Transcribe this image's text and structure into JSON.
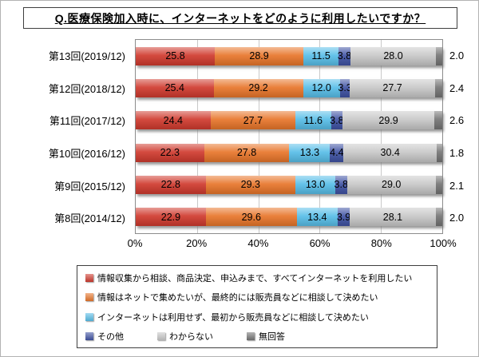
{
  "title": "Q.医療保険加入時に、インターネットをどのように利用したいですか？",
  "chart_data": {
    "type": "bar",
    "stacked": true,
    "orientation": "horizontal",
    "title": "Q.医療保険加入時に、インターネットをどのように利用したいですか？",
    "categories": [
      "第13回(2019/12)",
      "第12回(2018/12)",
      "第11回(2017/12)",
      "第10回(2016/12)",
      "第9回(2015/12)",
      "第8回(2014/12)"
    ],
    "series": [
      {
        "name": "情報収集から相談、商品決定、申込みまで、すべてインターネットを利用したい",
        "color": "#d03b2f",
        "values": [
          25.8,
          25.4,
          24.4,
          22.3,
          22.8,
          22.9
        ]
      },
      {
        "name": "情報はネットで集めたいが、最終的には販売員などに相談して決めたい",
        "color": "#e8762b",
        "values": [
          28.9,
          29.2,
          27.7,
          27.8,
          29.3,
          29.6
        ]
      },
      {
        "name": "インターネットは利用せず、最初から販売員などに相談して決めたい",
        "color": "#58bee8",
        "values": [
          11.5,
          12.0,
          11.6,
          13.3,
          13.0,
          13.4
        ]
      },
      {
        "name": "その他",
        "color": "#4053a4",
        "values": [
          3.8,
          3.3,
          3.8,
          4.4,
          3.8,
          3.9
        ]
      },
      {
        "name": "わからない",
        "color": "#c8c8c8",
        "values": [
          28.0,
          27.7,
          29.9,
          30.4,
          29.0,
          28.1
        ]
      },
      {
        "name": "無回答",
        "color": "#757575",
        "values": [
          2.0,
          2.4,
          2.6,
          1.8,
          2.1,
          2.0
        ]
      }
    ],
    "x_ticks": [
      "0%",
      "20%",
      "40%",
      "60%",
      "80%",
      "100%"
    ],
    "xlim": [
      0,
      100
    ],
    "grid": true,
    "legend_position": "bottom",
    "legend_rows": [
      [
        0
      ],
      [
        1
      ],
      [
        2
      ],
      [
        3,
        4,
        5
      ]
    ]
  }
}
